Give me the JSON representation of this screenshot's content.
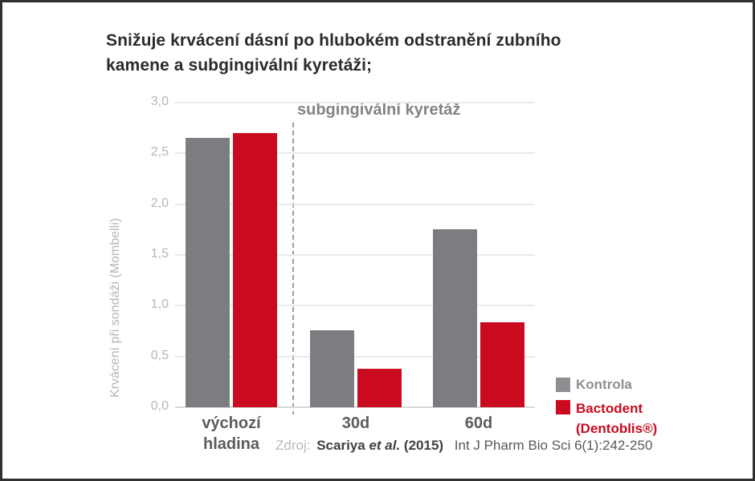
{
  "title": {
    "lines": [
      "Snižuje krvácení dásní po hlubokém odstranění zubního",
      "kamene a subgingivální kyretáži;"
    ]
  },
  "chart_data": {
    "type": "bar",
    "categories": [
      "výchozí hladina",
      "30d",
      "60d"
    ],
    "series": [
      {
        "name": "Kontrola",
        "color": "#7b7d80",
        "values": [
          2.65,
          0.76,
          1.75
        ]
      },
      {
        "name": "Bactodent (Dentoblis®)",
        "color": "#ca0b1f",
        "values": [
          2.7,
          0.38,
          0.84
        ]
      }
    ],
    "xlabel": "",
    "ylabel": "Krvácení při sondáži (Mombelli)",
    "ylim": [
      0,
      3
    ],
    "ytick_step": 0.5,
    "ytick_labels": [
      "0,0",
      "0,5",
      "1,0",
      "1,5",
      "2,0",
      "2,5",
      "3,0"
    ],
    "grid": true,
    "annotation": {
      "text": "subgingivální kyretáž",
      "divider_after_category": 0
    },
    "legend_position": "right-bottom"
  },
  "legend": {
    "kontrola_label": "Kontrola",
    "kontrola_color": "#8d8f92",
    "bactodent_line1": "Bactodent",
    "bactodent_line2": "(Dentoblis®)",
    "bactodent_color": "#ca0b1f"
  },
  "source": {
    "label": "Zdroj:",
    "author": "Scariya",
    "etal": "et al.",
    "year": "(2015)",
    "journal": "Int J Pharm Bio Sci 6(1):242-250"
  }
}
